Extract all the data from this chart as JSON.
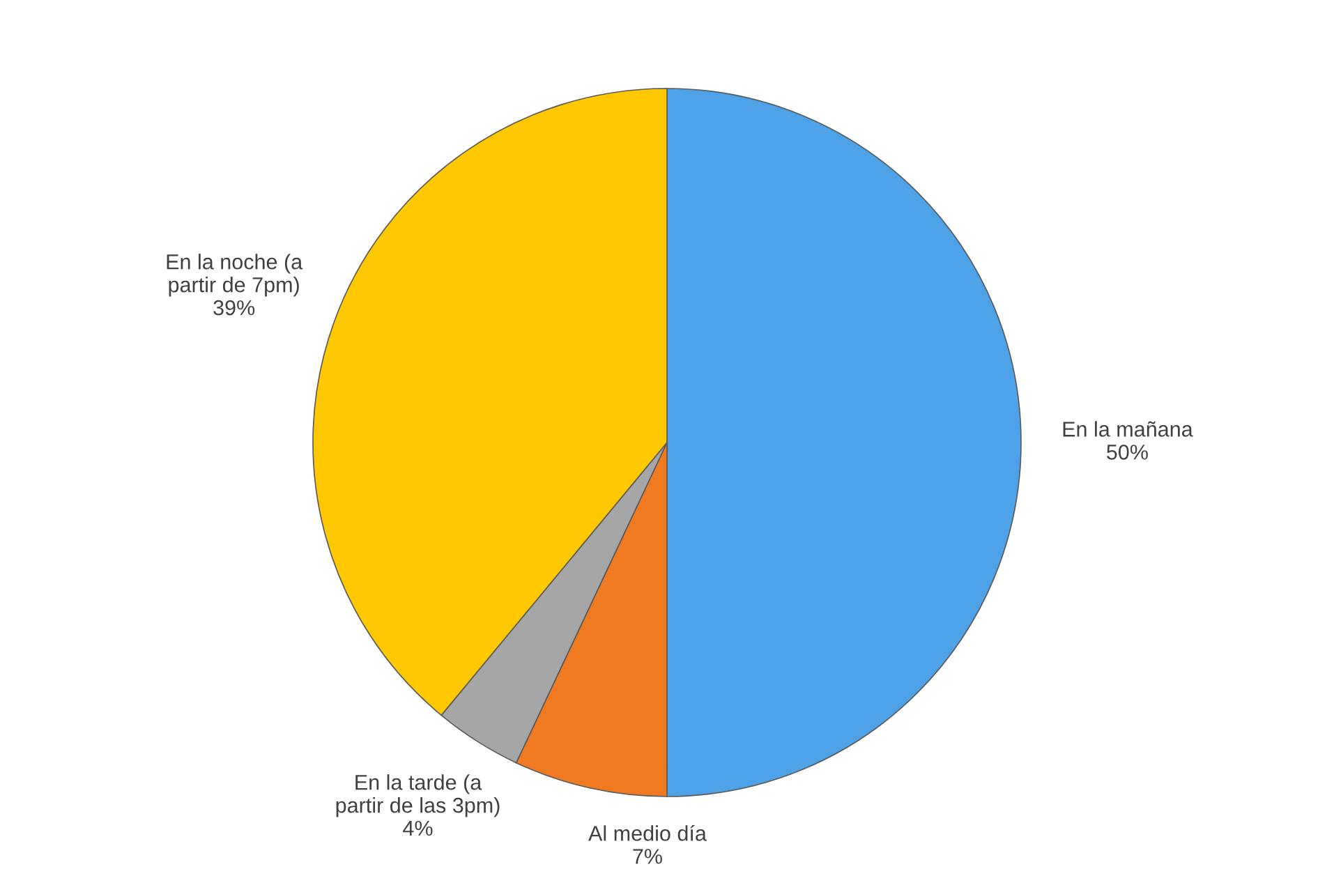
{
  "chart_data": {
    "type": "pie",
    "categories": [
      "En la mañana",
      "Al medio día",
      "En la tarde (a\npartir de las 3pm)",
      "En la noche (a\npartir de 7pm)"
    ],
    "values": [
      50,
      7,
      4,
      39
    ],
    "colors": [
      "#4ea2e8",
      "#f07a22",
      "#a6a6a6",
      "#ffc800"
    ],
    "value_labels": [
      "50%",
      "7%",
      "4%",
      "39%"
    ]
  }
}
